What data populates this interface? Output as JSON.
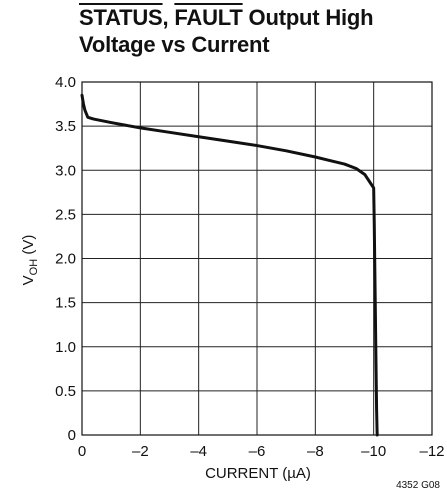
{
  "title": {
    "line1_part1": "STATUS",
    "line1_sep": ", ",
    "line1_part2": "FAULT",
    "line1_part3": " Output High",
    "line2": "Voltage vs Current"
  },
  "figure_code": "4352 G08",
  "chart_data": {
    "type": "line",
    "title": "STATUS, FAULT Output High Voltage vs Current",
    "xlabel": "CURRENT (µA)",
    "ylabel": "V_OH (V)",
    "ylabel_main": "V",
    "ylabel_sub": "OH",
    "ylabel_unit": " (V)",
    "xlim": [
      0,
      -12
    ],
    "ylim": [
      0,
      4.0
    ],
    "xticks": [
      0,
      -2,
      -4,
      -6,
      -8,
      -10,
      -12
    ],
    "xtick_labels": [
      "0",
      "–2",
      "–4",
      "–6",
      "–8",
      "–10",
      "–12"
    ],
    "yticks": [
      0,
      0.5,
      1.0,
      1.5,
      2.0,
      2.5,
      3.0,
      3.5,
      4.0
    ],
    "ytick_labels": [
      "0",
      "0.5",
      "1.0",
      "1.5",
      "2.0",
      "2.5",
      "3.0",
      "3.5",
      "4.0"
    ],
    "grid": true,
    "line_color": "#111111",
    "grid_color": "#222222",
    "series": [
      {
        "x": [
          0,
          -0.05,
          -0.1,
          -0.2,
          -0.4,
          -0.7,
          -1,
          -1.5,
          -2,
          -3,
          -4,
          -5,
          -6,
          -7,
          -8,
          -8.5,
          -9,
          -9.4,
          -9.7,
          -9.9,
          -10.0,
          -10.02,
          -10.05,
          -10.08,
          -10.1,
          -10.12
        ],
        "y": [
          3.85,
          3.75,
          3.68,
          3.6,
          3.58,
          3.56,
          3.54,
          3.51,
          3.48,
          3.43,
          3.38,
          3.33,
          3.28,
          3.22,
          3.15,
          3.11,
          3.07,
          3.02,
          2.95,
          2.85,
          2.8,
          2.4,
          1.6,
          0.8,
          0.3,
          0
        ]
      }
    ]
  }
}
